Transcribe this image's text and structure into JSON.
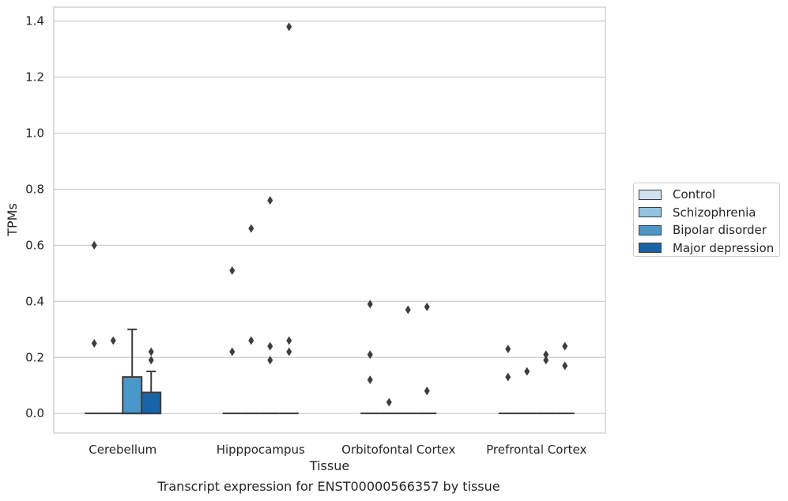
{
  "chart_data": {
    "type": "box",
    "title": "",
    "caption": "Transcript expression for ENST00000566357 by tissue",
    "xlabel": "Tissue",
    "ylabel": "TPMs",
    "ylim": [
      -0.07,
      1.45
    ],
    "yticks": [
      0.0,
      0.2,
      0.4,
      0.6,
      0.8,
      1.0,
      1.2,
      1.4
    ],
    "ytick_labels": [
      "0.0",
      "0.2",
      "0.4",
      "0.6",
      "0.8",
      "1.0",
      "1.2",
      "1.4"
    ],
    "grid": "horizontal",
    "legend_position": "right",
    "categories": [
      "Cerebellum",
      "Hipppocampus",
      "Orbitofontal Cortex",
      "Prefrontal Cortex"
    ],
    "series": [
      {
        "name": "Control",
        "color": "#d0e1f2",
        "boxes": [
          {
            "q1": 0,
            "median": 0,
            "q3": 0,
            "whislo": 0,
            "whishi": 0,
            "fliers": [
              0.6,
              0.25
            ]
          },
          {
            "q1": 0,
            "median": 0,
            "q3": 0,
            "whislo": 0,
            "whishi": 0,
            "fliers": [
              0.51,
              0.22
            ]
          },
          {
            "q1": 0,
            "median": 0,
            "q3": 0,
            "whislo": 0,
            "whishi": 0,
            "fliers": [
              0.39,
              0.21,
              0.12
            ]
          },
          {
            "q1": 0,
            "median": 0,
            "q3": 0,
            "whislo": 0,
            "whishi": 0,
            "fliers": [
              0.23,
              0.13
            ]
          }
        ]
      },
      {
        "name": "Schizophrenia",
        "color": "#94c4df",
        "boxes": [
          {
            "q1": 0,
            "median": 0,
            "q3": 0,
            "whislo": 0,
            "whishi": 0,
            "fliers": [
              0.26
            ]
          },
          {
            "q1": 0,
            "median": 0,
            "q3": 0,
            "whislo": 0,
            "whishi": 0,
            "fliers": [
              0.66,
              0.26
            ]
          },
          {
            "q1": 0,
            "median": 0,
            "q3": 0,
            "whislo": 0,
            "whishi": 0,
            "fliers": [
              0.04
            ]
          },
          {
            "q1": 0,
            "median": 0,
            "q3": 0,
            "whislo": 0,
            "whishi": 0,
            "fliers": [
              0.15
            ]
          }
        ]
      },
      {
        "name": "Bipolar disorder",
        "color": "#4a98c9",
        "boxes": [
          {
            "q1": 0,
            "median": 0,
            "q3": 0.13,
            "whislo": 0,
            "whishi": 0.3,
            "fliers": []
          },
          {
            "q1": 0,
            "median": 0,
            "q3": 0,
            "whislo": 0,
            "whishi": 0,
            "fliers": [
              0.76,
              0.24,
              0.19
            ]
          },
          {
            "q1": 0,
            "median": 0,
            "q3": 0,
            "whislo": 0,
            "whishi": 0,
            "fliers": [
              0.37
            ]
          },
          {
            "q1": 0,
            "median": 0,
            "q3": 0,
            "whislo": 0,
            "whishi": 0,
            "fliers": [
              0.21,
              0.19
            ]
          }
        ]
      },
      {
        "name": "Major depression",
        "color": "#1764ab",
        "boxes": [
          {
            "q1": 0,
            "median": 0,
            "q3": 0.075,
            "whislo": 0,
            "whishi": 0.15,
            "fliers": [
              0.22,
              0.19
            ]
          },
          {
            "q1": 0,
            "median": 0,
            "q3": 0,
            "whislo": 0,
            "whishi": 0,
            "fliers": [
              1.38,
              0.26,
              0.22
            ]
          },
          {
            "q1": 0,
            "median": 0,
            "q3": 0,
            "whislo": 0,
            "whishi": 0,
            "fliers": [
              0.38,
              0.08
            ]
          },
          {
            "q1": 0,
            "median": 0,
            "q3": 0,
            "whislo": 0,
            "whishi": 0,
            "fliers": [
              0.24,
              0.17
            ]
          }
        ]
      }
    ]
  }
}
